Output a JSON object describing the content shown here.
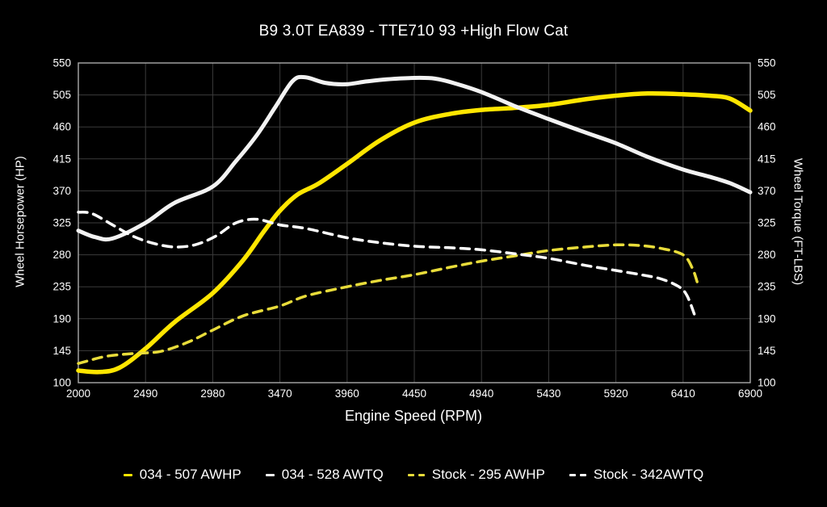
{
  "chart_data": {
    "type": "line",
    "title": "B9 3.0T EA839 - TTE710 93 +High Flow Cat",
    "xlabel": "Engine Speed (RPM)",
    "ylabel_left": "Wheel Horsepower (HP)",
    "ylabel_right": "Wheel Torque (FT-LBS)",
    "xlim": [
      2000,
      6900
    ],
    "ylim": [
      100,
      550
    ],
    "xticks": [
      2000,
      2490,
      2980,
      3470,
      3960,
      4450,
      4940,
      5430,
      5920,
      6410,
      6900
    ],
    "yticks": [
      100,
      145,
      190,
      235,
      280,
      325,
      370,
      415,
      460,
      505,
      550
    ],
    "grid": true,
    "legend_position": "bottom",
    "colors": {
      "background": "#000000",
      "gridline": "#3b3b3b",
      "plot_border": "#aaaaaa",
      "tune_yellow": "#ffe600",
      "tune_white": "#f2f2f2",
      "stock_yellow": "#e8dc3a",
      "stock_white": "#ffffff"
    },
    "series": [
      {
        "name": "034 - 507 AWHP",
        "color": "#ffe600",
        "style": "solid",
        "width": 5.5,
        "axis": "left",
        "points": [
          [
            2000,
            117
          ],
          [
            2150,
            115
          ],
          [
            2300,
            121
          ],
          [
            2490,
            148
          ],
          [
            2700,
            185
          ],
          [
            2980,
            226
          ],
          [
            3200,
            272
          ],
          [
            3350,
            312
          ],
          [
            3470,
            342
          ],
          [
            3600,
            365
          ],
          [
            3750,
            380
          ],
          [
            3960,
            408
          ],
          [
            4200,
            441
          ],
          [
            4450,
            466
          ],
          [
            4700,
            478
          ],
          [
            4940,
            484
          ],
          [
            5200,
            487
          ],
          [
            5430,
            491
          ],
          [
            5700,
            499
          ],
          [
            5920,
            504
          ],
          [
            6150,
            507
          ],
          [
            6410,
            506
          ],
          [
            6600,
            504
          ],
          [
            6750,
            500
          ],
          [
            6900,
            483
          ]
        ]
      },
      {
        "name": "034 - 528 AWTQ",
        "color": "#f2f2f2",
        "style": "solid",
        "width": 5,
        "axis": "right",
        "points": [
          [
            2000,
            314
          ],
          [
            2120,
            305
          ],
          [
            2250,
            303
          ],
          [
            2490,
            325
          ],
          [
            2700,
            353
          ],
          [
            2980,
            376
          ],
          [
            3150,
            412
          ],
          [
            3300,
            448
          ],
          [
            3430,
            486
          ],
          [
            3560,
            524
          ],
          [
            3650,
            530
          ],
          [
            3800,
            522
          ],
          [
            3950,
            520
          ],
          [
            4100,
            524
          ],
          [
            4250,
            527
          ],
          [
            4450,
            529
          ],
          [
            4600,
            528
          ],
          [
            4750,
            521
          ],
          [
            4940,
            509
          ],
          [
            5200,
            488
          ],
          [
            5430,
            471
          ],
          [
            5700,
            452
          ],
          [
            5920,
            437
          ],
          [
            6150,
            418
          ],
          [
            6410,
            400
          ],
          [
            6600,
            390
          ],
          [
            6750,
            381
          ],
          [
            6900,
            368
          ]
        ]
      },
      {
        "name": "Stock - 295 AWHP",
        "color": "#e8dc3a",
        "style": "dashed",
        "width": 3.5,
        "axis": "left",
        "points": [
          [
            2000,
            127
          ],
          [
            2200,
            137
          ],
          [
            2400,
            141
          ],
          [
            2600,
            144
          ],
          [
            2800,
            157
          ],
          [
            2980,
            174
          ],
          [
            3200,
            194
          ],
          [
            3470,
            208
          ],
          [
            3660,
            222
          ],
          [
            3960,
            235
          ],
          [
            4200,
            244
          ],
          [
            4450,
            252
          ],
          [
            4700,
            262
          ],
          [
            4940,
            271
          ],
          [
            5200,
            279
          ],
          [
            5430,
            286
          ],
          [
            5700,
            291
          ],
          [
            5920,
            294
          ],
          [
            6100,
            293
          ],
          [
            6250,
            289
          ],
          [
            6410,
            280
          ],
          [
            6480,
            260
          ],
          [
            6520,
            237
          ]
        ]
      },
      {
        "name": "Stock - 342AWTQ",
        "color": "#ffffff",
        "style": "dashed",
        "width": 3.5,
        "axis": "right",
        "points": [
          [
            2000,
            340
          ],
          [
            2100,
            338
          ],
          [
            2250,
            322
          ],
          [
            2400,
            306
          ],
          [
            2550,
            296
          ],
          [
            2700,
            291
          ],
          [
            2850,
            294
          ],
          [
            3000,
            306
          ],
          [
            3150,
            325
          ],
          [
            3300,
            330
          ],
          [
            3470,
            322
          ],
          [
            3660,
            317
          ],
          [
            3960,
            304
          ],
          [
            4200,
            297
          ],
          [
            4450,
            292
          ],
          [
            4700,
            290
          ],
          [
            4940,
            287
          ],
          [
            5200,
            281
          ],
          [
            5430,
            275
          ],
          [
            5700,
            265
          ],
          [
            5920,
            258
          ],
          [
            6100,
            252
          ],
          [
            6250,
            246
          ],
          [
            6380,
            235
          ],
          [
            6440,
            222
          ],
          [
            6500,
            192
          ]
        ]
      }
    ]
  }
}
